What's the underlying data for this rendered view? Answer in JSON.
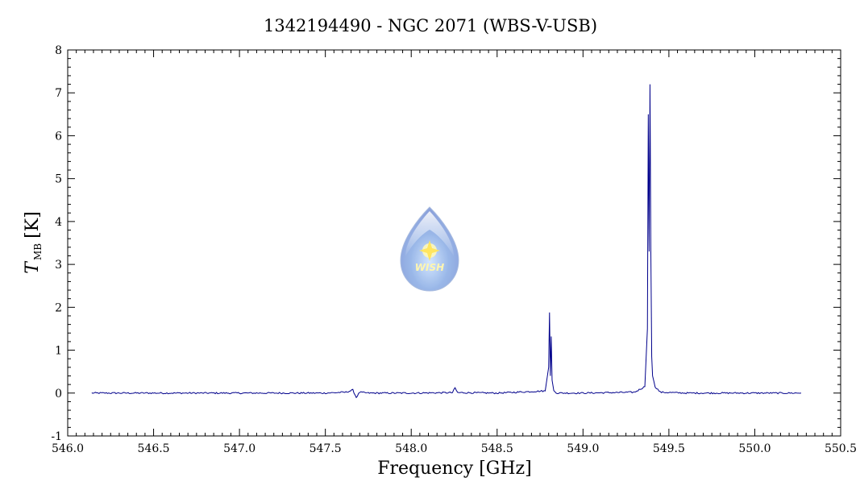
{
  "chart_data": {
    "type": "line",
    "title": "1342194490 - NGC 2071 (WBS-V-USB)",
    "xlabel": "Frequency [GHz]",
    "ylabel": {
      "symbol": "T",
      "subscript": "MB",
      "unit": "[K]"
    },
    "xlim": [
      546.0,
      550.5
    ],
    "ylim": [
      -1,
      8
    ],
    "x_ticks": [
      "546.0",
      "546.5",
      "547.0",
      "547.5",
      "548.0",
      "548.5",
      "549.0",
      "549.5",
      "550.0",
      "550.5"
    ],
    "y_ticks": [
      "-1",
      "0",
      "1",
      "2",
      "3",
      "4",
      "5",
      "6",
      "7",
      "8"
    ],
    "grid": false,
    "series": [
      {
        "color": "#00008b",
        "x": [
          546.14,
          546.5,
          547.0,
          547.5,
          547.62,
          547.66,
          547.68,
          547.7,
          547.75,
          548.0,
          548.24,
          548.255,
          548.27,
          548.5,
          548.78,
          548.8,
          548.805,
          548.81,
          548.815,
          548.82,
          548.83,
          548.85,
          549.0,
          549.3,
          549.36,
          549.375,
          549.38,
          549.385,
          549.39,
          549.395,
          549.4,
          549.405,
          549.42,
          549.45,
          549.6,
          550.0,
          550.27
        ],
        "y": [
          0.0,
          0.0,
          0.0,
          0.0,
          0.02,
          0.07,
          -0.1,
          0.02,
          0.0,
          0.0,
          0.01,
          0.12,
          0.01,
          0.0,
          0.05,
          0.6,
          1.88,
          0.4,
          1.32,
          0.3,
          0.05,
          0.0,
          0.0,
          0.02,
          0.15,
          1.5,
          6.5,
          3.3,
          7.2,
          3.3,
          0.85,
          0.4,
          0.15,
          0.02,
          0.0,
          0.0,
          0.0
        ]
      }
    ]
  },
  "watermark": {
    "text": "WISH"
  }
}
